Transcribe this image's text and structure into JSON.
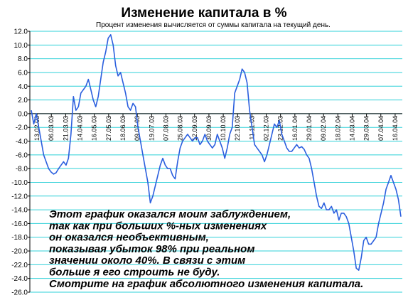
{
  "chart_data": {
    "type": "line",
    "title": "Изменение капитала в %",
    "subtitle": "Процент изменения вычисляется от суммы капитала на текущий день.",
    "ylim": [
      -26,
      12
    ],
    "y_ticks": [
      "12.0",
      "10.0",
      "8.0",
      "6.0",
      "4.0",
      "2.0",
      "0.0",
      "-2.0",
      "-4.0",
      "-6.0",
      "-8.0",
      "-10.0",
      "-12.0",
      "-14.0",
      "-16.0",
      "-18.0",
      "-20.0",
      "-22.0",
      "-24.0",
      "-26.0"
    ],
    "x_ticks": [
      "13.02.03",
      "06.03.03",
      "21.03.03",
      "14.04.03",
      "16.05.03",
      "27.05.03",
      "18.06.03",
      "09.07.03",
      "19.07.03",
      "07.08.03",
      "25.08.03",
      "12.09.03",
      "30.09.03",
      "10.10.03",
      "22.10.03",
      "11.11.03",
      "02.12.03",
      "23.12.03",
      "16.01.04",
      "29.01.04",
      "09.02.04",
      "18.02.04",
      "14.03.04",
      "29.03.04",
      "07.04.04",
      "16.04.04"
    ],
    "grid": true,
    "line_color": "#2b5fde",
    "grid_color": "#2fd0d8",
    "series": [
      {
        "values": [
          0.5,
          -1.5,
          0,
          -2,
          -4,
          -6,
          -7,
          -8,
          -8.5,
          -8.8,
          -8.6,
          -8,
          -7.5,
          -7,
          -7.5,
          -6.5,
          -3,
          2.5,
          0.5,
          1,
          3,
          3.5,
          4,
          5,
          3.5,
          2,
          1,
          2.5,
          5,
          7.5,
          9,
          11,
          11.5,
          10,
          7,
          5.5,
          6,
          4.5,
          3,
          1,
          0.5,
          1.5,
          1,
          -2,
          -4,
          -6,
          -8,
          -10,
          -13,
          -12,
          -10.5,
          -9,
          -7.5,
          -6.5,
          -7.5,
          -8,
          -8,
          -9,
          -9.5,
          -7,
          -5,
          -4,
          -3.5,
          -3,
          -3.5,
          -4,
          -3.5,
          -3.5,
          -4.5,
          -4,
          -3,
          -4,
          -4.5,
          -5,
          -4.5,
          -3,
          -4,
          -5,
          -6.5,
          -5,
          -3,
          -2,
          3,
          4,
          5,
          6.5,
          6,
          4.5,
          0.5,
          -2,
          -4.5,
          -5,
          -5.5,
          -6,
          -7,
          -6,
          -4.5,
          -3,
          -1.5,
          -2,
          -1,
          -3,
          -4,
          -5,
          -5.5,
          -5.5,
          -5,
          -4.5,
          -5,
          -4.8,
          -5.2,
          -6,
          -6.5,
          -8,
          -10,
          -12,
          -13.5,
          -13.8,
          -13,
          -14,
          -14,
          -13.5,
          -14.5,
          -14,
          -15.5,
          -14.5,
          -14.5,
          -15,
          -16,
          -18,
          -20,
          -22.5,
          -22.8,
          -21,
          -18.5,
          -18,
          -19,
          -19,
          -18.5,
          -18,
          -16,
          -14.5,
          -13,
          -11,
          -10,
          -9,
          -10,
          -11,
          -12.5,
          -15
        ]
      }
    ],
    "annotation": [
      "Этот график оказался моим заблуждением,",
      "так как при больших %-ных изменениях",
      "он оказался необъективным,",
      "показывая убыток 98% при реальном",
      "значении около 40%. В связи с этим",
      "больше я его строить не буду.",
      "Смотрите на график абсолютного изменения капитала."
    ]
  }
}
